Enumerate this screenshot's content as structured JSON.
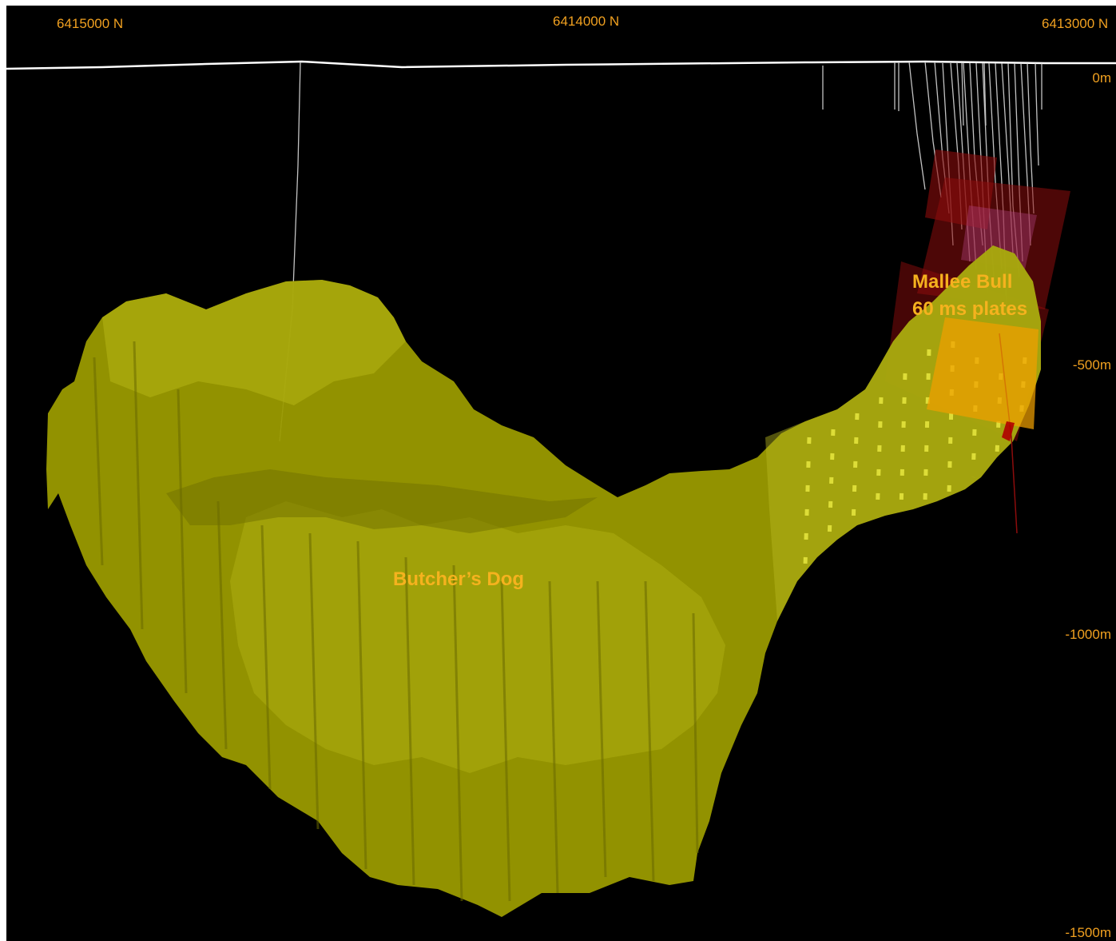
{
  "northing_labels": [
    "6415000 N",
    "6414000 N",
    "6413000 N"
  ],
  "depth_labels": [
    "0m",
    "-500m",
    "-1000m",
    "-1500m"
  ],
  "targets": {
    "butchers_dog": "Butcher’s Dog",
    "mallee_bull_line1": "Mallee Bull",
    "mallee_bull_line2": "60 ms plates"
  },
  "colors": {
    "background": "#000000",
    "body_fill": "#9a9a00",
    "body_light": "#b4b414",
    "label": "#f0a020",
    "drillholes": "#d8d8d8",
    "plates": "#8c0c0c",
    "plate_highlight": "#f0a000"
  }
}
